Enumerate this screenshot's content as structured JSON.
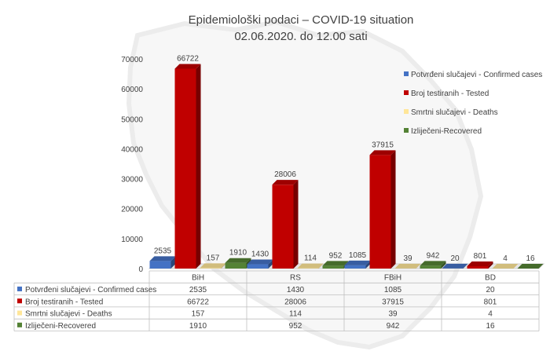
{
  "chart_data": {
    "type": "bar",
    "title_line1": "Epidemiološki podaci – COVID-19 situation",
    "title_line2": "02.06.2020. do 12.00 sati",
    "categories": [
      "BiH",
      "RS",
      "FBiH",
      "BD"
    ],
    "ylim": [
      0,
      70000
    ],
    "yticks": [
      0,
      10000,
      20000,
      30000,
      40000,
      50000,
      60000,
      70000
    ],
    "grid": false,
    "legend_position": "right",
    "series": [
      {
        "name": "Potvrđeni slučajevi - Confirmed cases",
        "values": [
          2535,
          1430,
          1085,
          20
        ],
        "color": "#4472C4"
      },
      {
        "name": "Broj testiranih - Tested",
        "values": [
          66722,
          28006,
          37915,
          801
        ],
        "color": "#C00000"
      },
      {
        "name": "Smrtni slučajevi - Deaths",
        "values": [
          157,
          114,
          39,
          4
        ],
        "color": "#FFE699"
      },
      {
        "name": "Izliječeni-Recovered",
        "values": [
          1910,
          952,
          942,
          16
        ],
        "color": "#548235"
      }
    ]
  }
}
